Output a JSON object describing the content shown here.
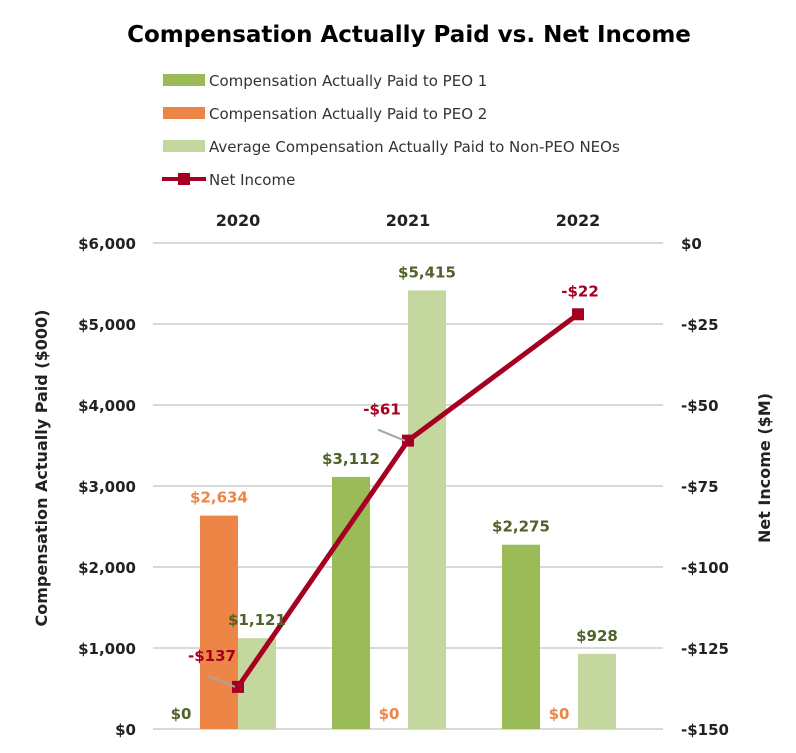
{
  "chart_data": {
    "type": "bar",
    "title": "Compensation Actually Paid vs. Net Income",
    "categories": [
      "2020",
      "2021",
      "2022"
    ],
    "ylabel": "Compensation Actually Paid ($000)",
    "y2label": "Net Income ($M)",
    "ylim": [
      0,
      6000
    ],
    "y2lim": [
      -150,
      0
    ],
    "yticks": [
      "$0",
      "$1,000",
      "$2,000",
      "$3,000",
      "$4,000",
      "$5,000",
      "$6,000"
    ],
    "y2ticks": [
      "-$150",
      "-$125",
      "-$100",
      "-$75",
      "-$50",
      "-$25",
      "$0"
    ],
    "grid": true,
    "legend_position": "top",
    "series": [
      {
        "name": "Compensation Actually Paid to PEO 1",
        "type": "bar",
        "color": "#9bbb59",
        "label_color": "#4f6228",
        "values": [
          0,
          3112,
          2275
        ],
        "labels": [
          "$0",
          "$3,112",
          "$2,275"
        ]
      },
      {
        "name": "Compensation Actually Paid to PEO 2",
        "type": "bar",
        "color": "#ed8546",
        "label_color": "#ed8546",
        "values": [
          2634,
          0,
          0
        ],
        "labels": [
          "$2,634",
          "$0",
          "$0"
        ]
      },
      {
        "name": "Average Compensation Actually Paid to Non-PEO NEOs",
        "type": "bar",
        "color": "#c4d79f",
        "label_color": "#4f6228",
        "values": [
          1121,
          5415,
          928
        ],
        "labels": [
          "$1,121",
          "$5,415",
          "$928"
        ]
      },
      {
        "name": "Net Income",
        "type": "line",
        "axis": "right",
        "color": "#a50021",
        "label_color": "#a50021",
        "values": [
          -137,
          -61,
          -22
        ],
        "labels": [
          "-$137",
          "-$61",
          "-$22"
        ]
      }
    ]
  }
}
